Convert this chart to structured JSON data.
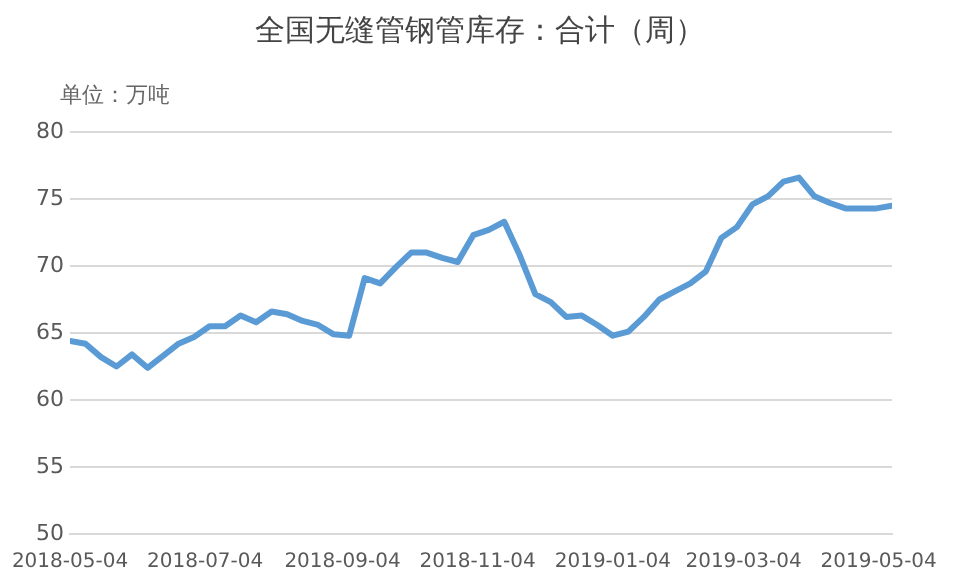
{
  "chart_data": {
    "type": "line",
    "title": "全国无缝管钢管库存：合计（周）",
    "ylabel": "单位：万吨",
    "x": [
      "2018-05-04",
      "2018-05-11",
      "2018-05-18",
      "2018-05-25",
      "2018-06-01",
      "2018-06-08",
      "2018-06-15",
      "2018-06-22",
      "2018-06-29",
      "2018-07-06",
      "2018-07-13",
      "2018-07-20",
      "2018-07-27",
      "2018-08-03",
      "2018-08-10",
      "2018-08-17",
      "2018-08-24",
      "2018-08-31",
      "2018-09-07",
      "2018-09-14",
      "2018-09-21",
      "2018-09-28",
      "2018-10-05",
      "2018-10-12",
      "2018-10-19",
      "2018-10-26",
      "2018-11-02",
      "2018-11-09",
      "2018-11-16",
      "2018-11-23",
      "2018-11-30",
      "2018-12-07",
      "2018-12-14",
      "2018-12-21",
      "2018-12-28",
      "2019-01-04",
      "2019-01-11",
      "2019-01-18",
      "2019-01-25",
      "2019-02-01",
      "2019-02-08",
      "2019-02-15",
      "2019-02-22",
      "2019-03-01",
      "2019-03-08",
      "2019-03-15",
      "2019-03-22",
      "2019-03-29",
      "2019-04-05",
      "2019-04-12",
      "2019-04-19",
      "2019-04-26",
      "2019-05-03",
      "2019-05-10"
    ],
    "series": [
      {
        "color": "#5b9bd5",
        "values": [
          64.4,
          64.2,
          63.2,
          62.5,
          63.4,
          62.4,
          63.3,
          64.2,
          64.7,
          65.5,
          65.5,
          66.3,
          65.8,
          66.6,
          66.4,
          65.9,
          65.6,
          64.9,
          64.8,
          69.1,
          68.7,
          69.9,
          71.0,
          71.0,
          70.6,
          70.3,
          72.3,
          72.7,
          73.3,
          70.8,
          67.9,
          67.3,
          66.2,
          66.3,
          65.6,
          64.8,
          65.1,
          66.2,
          67.5,
          68.1,
          68.7,
          69.6,
          72.1,
          72.9,
          74.6,
          75.2,
          76.3,
          76.6,
          75.2,
          74.7,
          74.3,
          74.3,
          74.3,
          74.5
        ]
      }
    ],
    "xlim": [
      "2018-05-04",
      "2019-05-10"
    ],
    "xticks": [
      "2018-05-04",
      "2018-07-04",
      "2018-09-04",
      "2018-11-04",
      "2019-01-04",
      "2019-03-04",
      "2019-05-04"
    ],
    "ylim": [
      50,
      80
    ],
    "yticks": [
      50,
      55,
      60,
      65,
      70,
      75,
      80
    ],
    "grid": "y",
    "legend": false,
    "marker": "none",
    "line_style": "solid"
  }
}
